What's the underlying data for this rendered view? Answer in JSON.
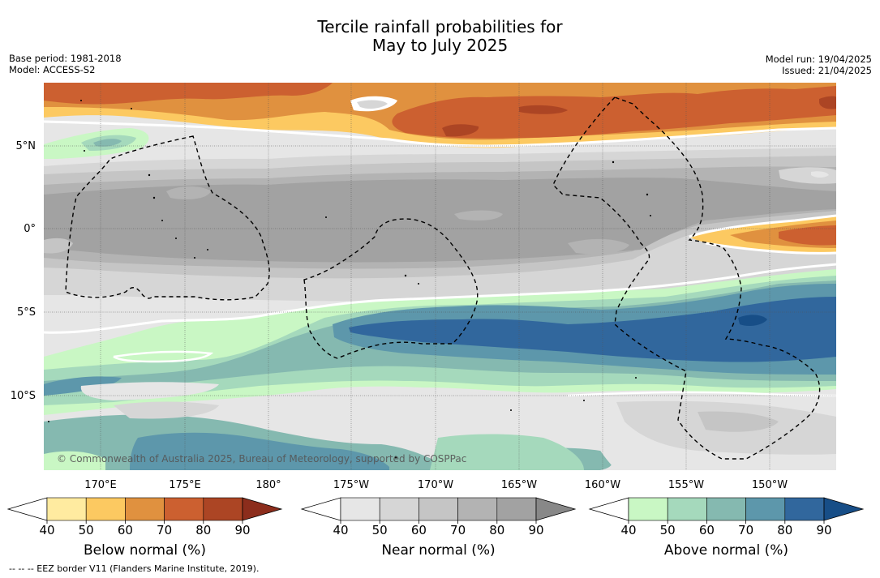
{
  "title": {
    "line1": "Tercile rainfall probabilities for",
    "line2": "May to July 2025"
  },
  "meta_left": {
    "base_period": "Base period: 1981-2018",
    "model": "Model: ACCESS-S2"
  },
  "meta_right": {
    "model_run": "Model run: 19/04/2025",
    "issued": "Issued: 21/04/2025"
  },
  "map": {
    "lat_labels": [
      "5°N",
      "0°",
      "5°S",
      "10°S"
    ],
    "lon_labels": [
      "170°E",
      "175°E",
      "180°",
      "175°W",
      "170°W",
      "165°W",
      "160°W",
      "155°W",
      "150°W"
    ],
    "copyright": "© Commonwealth of Australia 2025, Bureau of Meteorology, supported by COSPPac",
    "grid": true,
    "boundary_style": "dashed EEZ border"
  },
  "colorbars": [
    {
      "title": "Below normal (%)",
      "ticks": [
        "40",
        "50",
        "60",
        "70",
        "80",
        "90"
      ],
      "colors": [
        "#ffffff",
        "#ffeba0",
        "#fcc961",
        "#e0913f",
        "#cc6030",
        "#ac4524",
        "#8c2d1c"
      ]
    },
    {
      "title": "Near normal (%)",
      "ticks": [
        "40",
        "50",
        "60",
        "70",
        "80",
        "90"
      ],
      "colors": [
        "#ffffff",
        "#e6e6e6",
        "#d6d6d6",
        "#c5c5c5",
        "#b3b3b3",
        "#a2a2a2",
        "#888888"
      ]
    },
    {
      "title": "Above normal (%)",
      "ticks": [
        "40",
        "50",
        "60",
        "70",
        "80",
        "90"
      ],
      "colors": [
        "#ffffff",
        "#c9f7c4",
        "#a5d9bc",
        "#85b9b0",
        "#5d97ab",
        "#31679d",
        "#174e87"
      ]
    }
  ],
  "footer": "--  --  -- EEZ border V11 (Flanders Marine Institute, 2019)."
}
